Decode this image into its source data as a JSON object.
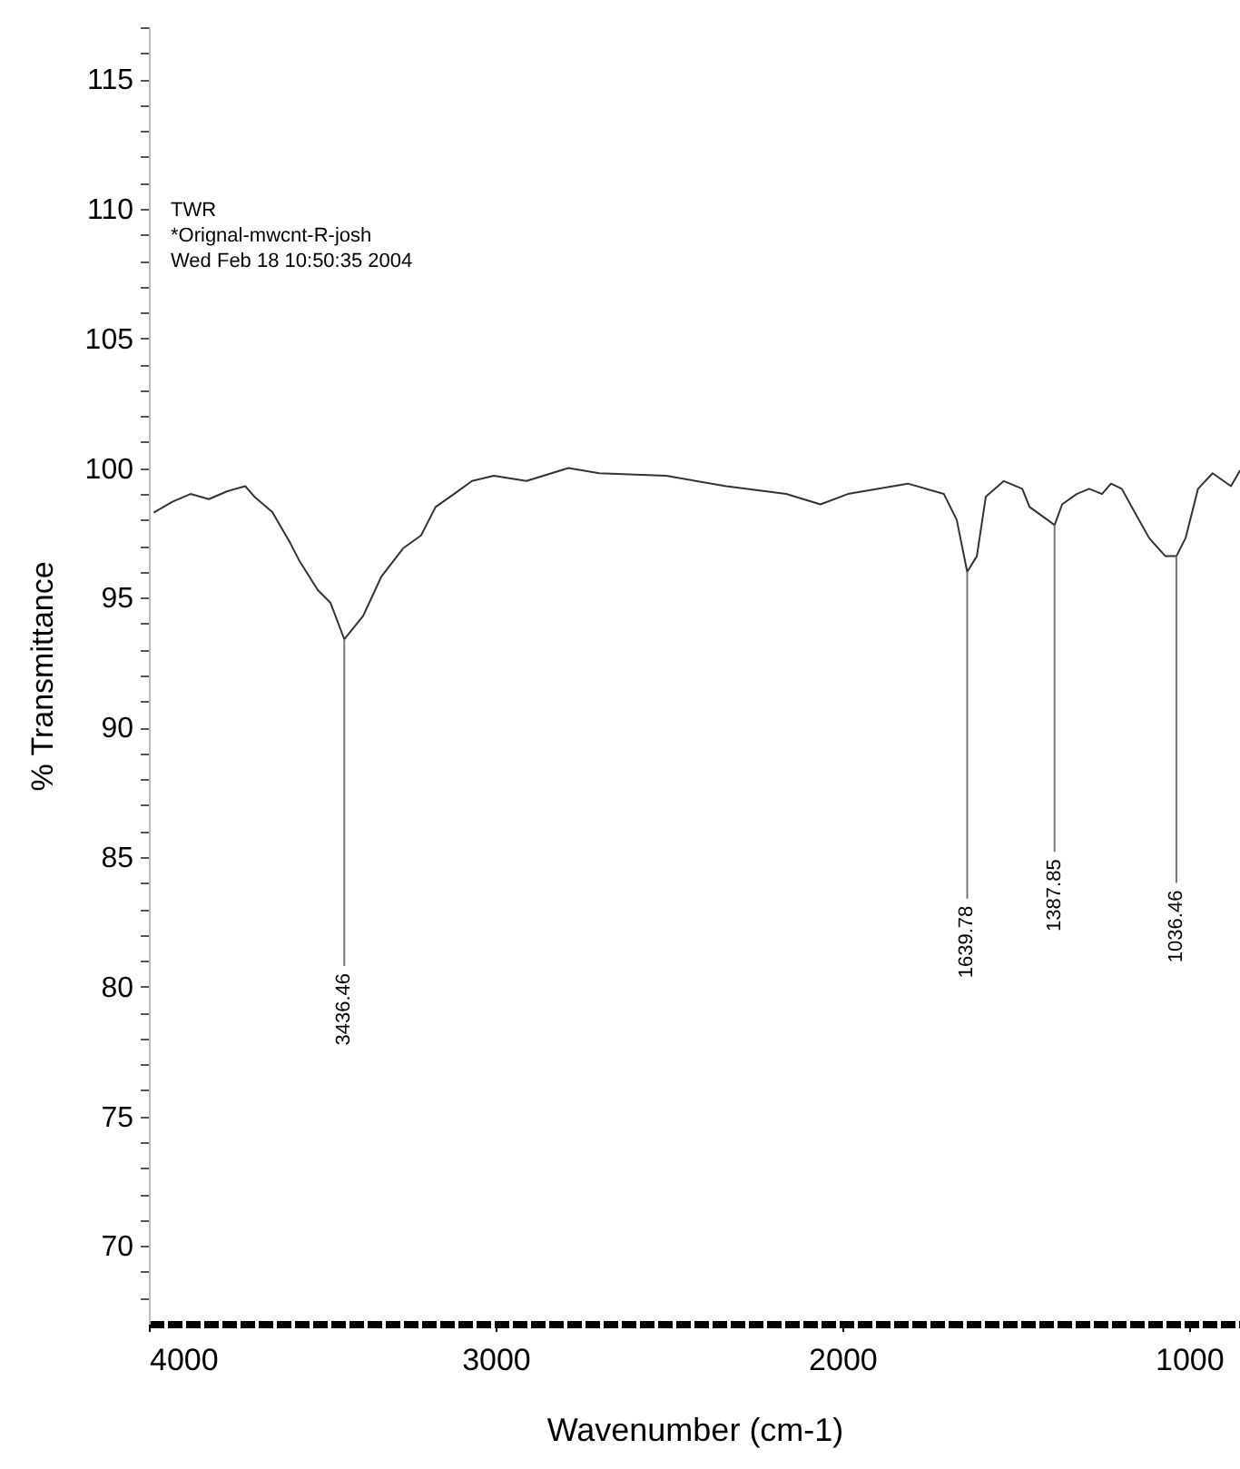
{
  "chart_data": {
    "type": "line",
    "xlabel": "Wavenumber (cm-1)",
    "ylabel": "% Transmittance",
    "x": [
      3984,
      3932,
      3880,
      3827,
      3775,
      3722,
      3696,
      3644,
      3592,
      3565,
      3513,
      3476,
      3436.46,
      3382,
      3330,
      3267,
      3215,
      3173,
      3120,
      3068,
      3005,
      2911,
      2790,
      2701,
      2508,
      2335,
      2162,
      2063,
      1984,
      1811,
      1707,
      1670,
      1639.78,
      1612,
      1586,
      1534,
      1481,
      1460,
      1408,
      1387.85,
      1366,
      1324,
      1288,
      1251,
      1225,
      1194,
      1157,
      1115,
      1068,
      1036.46,
      1010,
      974,
      932,
      879,
      853
    ],
    "series": [
      {
        "color": "#333333",
        "values": [
          98.3,
          98.7,
          99.0,
          98.8,
          99.1,
          99.3,
          98.9,
          98.3,
          97.1,
          96.4,
          95.3,
          94.8,
          93.4,
          94.3,
          95.8,
          96.9,
          97.4,
          98.5,
          99.0,
          99.5,
          99.7,
          99.5,
          100.0,
          99.8,
          99.7,
          99.3,
          99.0,
          98.6,
          99.0,
          99.4,
          99.0,
          98.0,
          96.0,
          96.6,
          98.9,
          99.5,
          99.2,
          98.5,
          98.0,
          97.8,
          98.6,
          99.0,
          99.2,
          99.0,
          99.4,
          99.2,
          98.3,
          97.3,
          96.6,
          96.6,
          97.3,
          99.2,
          99.8,
          99.3,
          99.9
        ]
      }
    ],
    "xlim": [
      4000,
      853
    ],
    "xticks": [
      4000,
      3000,
      2000,
      1000
    ],
    "ylim": [
      67,
      117
    ],
    "yticks": [
      {
        "value": 68,
        "label": null
      },
      {
        "value": 69,
        "label": null
      },
      70,
      {
        "value": 71,
        "label": null
      },
      {
        "value": 72,
        "label": null
      },
      {
        "value": 73,
        "label": null
      },
      {
        "value": 74,
        "label": null
      },
      75,
      {
        "value": 76,
        "label": null
      },
      {
        "value": 77,
        "label": null
      },
      {
        "value": 78,
        "label": null
      },
      {
        "value": 79,
        "label": null
      },
      80,
      {
        "value": 81,
        "label": null
      },
      {
        "value": 82,
        "label": null
      },
      {
        "value": 83,
        "label": null
      },
      {
        "value": 84,
        "label": null
      },
      85,
      {
        "value": 86,
        "label": null
      },
      {
        "value": 87,
        "label": null
      },
      {
        "value": 88,
        "label": null
      },
      {
        "value": 89,
        "label": null
      },
      90,
      {
        "value": 91,
        "label": null
      },
      {
        "value": 92,
        "label": null
      },
      {
        "value": 93,
        "label": null
      },
      {
        "value": 94,
        "label": null
      },
      95,
      {
        "value": 96,
        "label": null
      },
      {
        "value": 97,
        "label": null
      },
      {
        "value": 98,
        "label": null
      },
      {
        "value": 99,
        "label": null
      },
      100,
      {
        "value": 101,
        "label": null
      },
      {
        "value": 102,
        "label": null
      },
      {
        "value": 103,
        "label": null
      },
      {
        "value": 104,
        "label": null
      },
      105,
      {
        "value": 106,
        "label": null
      },
      {
        "value": 107,
        "label": null
      },
      {
        "value": 108,
        "label": null
      },
      {
        "value": 109,
        "label": null
      },
      110,
      {
        "value": 111,
        "label": null
      },
      {
        "value": 112,
        "label": null
      },
      {
        "value": 113,
        "label": null
      },
      {
        "value": 114,
        "label": null
      },
      115,
      {
        "value": 116,
        "label": null
      },
      {
        "value": 117,
        "label": null
      }
    ],
    "grid": false,
    "marker": "none",
    "line_style": "solid",
    "annotations": [
      "TWR",
      "*Orignal-mwcnt-R-josh",
      "Wed Feb 18 10:50:35 2004",
      {
        "text": "3436.46",
        "x": 3436.46,
        "y": 93.4
      },
      {
        "text": "1639.78",
        "x": 1639.78,
        "y": 96.0
      },
      {
        "text": "1387.85",
        "x": 1387.85,
        "y": 97.8
      },
      {
        "text": "1036.46",
        "x": 1036.46,
        "y": 96.6
      }
    ]
  }
}
